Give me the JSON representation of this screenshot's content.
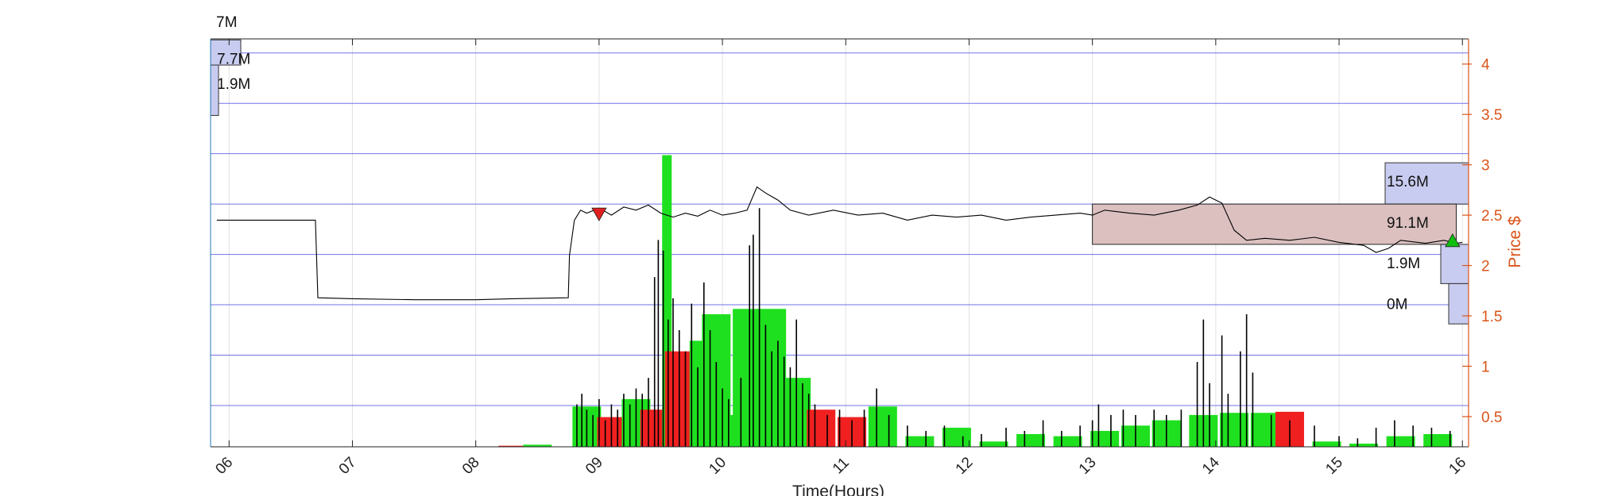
{
  "chart_data": {
    "type": "line",
    "xlabel": "Time(Hours)",
    "ylabel_right": "Price $",
    "xlim": [
      5.85,
      16.05
    ],
    "x_ticks": [
      "06",
      "07",
      "08",
      "09",
      "10",
      "11",
      "12",
      "13",
      "14",
      "15",
      "16"
    ],
    "ylim": [
      0.2,
      4.25
    ],
    "y_ticks": [
      0.5,
      1,
      1.5,
      2,
      2.5,
      3,
      3.5,
      4
    ],
    "y_tick_labels": [
      "0.5",
      "1",
      "1.5",
      "2",
      "2.5",
      "3",
      "3.5",
      "4"
    ],
    "top_label": "7M",
    "colors": {
      "price_line": "#000000",
      "axis_right": "#d9541a",
      "grid_blue": "#5a5ae6",
      "profile": "#c8ccf0",
      "box": "#dcc0c0",
      "vol_up": "#1fe01f",
      "vol_down": "#f02020"
    },
    "price_series": [
      [
        5.9,
        2.45
      ],
      [
        6.2,
        2.45
      ],
      [
        6.5,
        2.45
      ],
      [
        6.7,
        2.45
      ],
      [
        6.72,
        1.68
      ],
      [
        7.0,
        1.67
      ],
      [
        7.5,
        1.66
      ],
      [
        8.0,
        1.66
      ],
      [
        8.3,
        1.67
      ],
      [
        8.75,
        1.68
      ],
      [
        8.76,
        2.1
      ],
      [
        8.8,
        2.45
      ],
      [
        8.85,
        2.55
      ],
      [
        8.9,
        2.52
      ],
      [
        9.0,
        2.57
      ],
      [
        9.1,
        2.5
      ],
      [
        9.2,
        2.58
      ],
      [
        9.3,
        2.55
      ],
      [
        9.4,
        2.6
      ],
      [
        9.5,
        2.52
      ],
      [
        9.6,
        2.48
      ],
      [
        9.7,
        2.52
      ],
      [
        9.8,
        2.49
      ],
      [
        9.9,
        2.55
      ],
      [
        10.0,
        2.5
      ],
      [
        10.1,
        2.52
      ],
      [
        10.2,
        2.55
      ],
      [
        10.28,
        2.78
      ],
      [
        10.35,
        2.72
      ],
      [
        10.45,
        2.65
      ],
      [
        10.55,
        2.55
      ],
      [
        10.7,
        2.5
      ],
      [
        10.9,
        2.55
      ],
      [
        11.1,
        2.5
      ],
      [
        11.3,
        2.52
      ],
      [
        11.5,
        2.45
      ],
      [
        11.7,
        2.5
      ],
      [
        11.9,
        2.48
      ],
      [
        12.1,
        2.5
      ],
      [
        12.3,
        2.45
      ],
      [
        12.5,
        2.48
      ],
      [
        12.7,
        2.5
      ],
      [
        12.9,
        2.52
      ],
      [
        13.0,
        2.5
      ],
      [
        13.1,
        2.55
      ],
      [
        13.3,
        2.52
      ],
      [
        13.5,
        2.5
      ],
      [
        13.7,
        2.55
      ],
      [
        13.85,
        2.6
      ],
      [
        13.95,
        2.68
      ],
      [
        14.05,
        2.62
      ],
      [
        14.15,
        2.35
      ],
      [
        14.25,
        2.25
      ],
      [
        14.4,
        2.27
      ],
      [
        14.6,
        2.25
      ],
      [
        14.8,
        2.28
      ],
      [
        15.0,
        2.23
      ],
      [
        15.2,
        2.2
      ],
      [
        15.3,
        2.13
      ],
      [
        15.4,
        2.17
      ],
      [
        15.5,
        2.25
      ],
      [
        15.7,
        2.22
      ],
      [
        15.85,
        2.25
      ],
      [
        15.95,
        2.22
      ],
      [
        16.0,
        2.23
      ]
    ],
    "volume_profile": [
      {
        "side": "left",
        "price_low": 3.99,
        "price_high": 4.24,
        "label": "7.7M"
      },
      {
        "side": "left",
        "price_low": 3.49,
        "price_high": 3.99,
        "label": "1.9M"
      },
      {
        "side": "right",
        "price_low": 2.61,
        "price_high": 3.02,
        "label": "15.6M"
      },
      {
        "side": "right",
        "price_low": 1.82,
        "price_high": 2.21,
        "label": "1.9M"
      },
      {
        "side": "right",
        "price_low": 1.42,
        "price_high": 1.82,
        "label": "0M"
      }
    ],
    "value_area_box": {
      "x_start": 13.0,
      "x_end": 15.95,
      "price_low": 2.21,
      "price_high": 2.61,
      "label": "91.1M"
    },
    "markers": [
      {
        "type": "sell",
        "x": 9.0,
        "y": 2.5,
        "color": "#e02020"
      },
      {
        "type": "buy",
        "x": 15.92,
        "y": 2.25,
        "color": "#10c010"
      }
    ],
    "volume_bars": [
      {
        "x": 8.3,
        "h": 0.01,
        "dir": "down"
      },
      {
        "x": 8.5,
        "h": 0.02,
        "dir": "up"
      },
      {
        "x": 8.9,
        "h": 0.38,
        "dir": "up"
      },
      {
        "x": 9.1,
        "h": 0.28,
        "dir": "down"
      },
      {
        "x": 9.3,
        "h": 0.45,
        "dir": "up"
      },
      {
        "x": 9.45,
        "h": 0.35,
        "dir": "down"
      },
      {
        "x": 9.55,
        "h": 2.75,
        "dir": "up"
      },
      {
        "x": 9.65,
        "h": 0.9,
        "dir": "down"
      },
      {
        "x": 9.75,
        "h": 0.5,
        "dir": "down"
      },
      {
        "x": 9.85,
        "h": 1.0,
        "dir": "up"
      },
      {
        "x": 9.95,
        "h": 1.25,
        "dir": "up"
      },
      {
        "x": 10.05,
        "h": 0.3,
        "dir": "up"
      },
      {
        "x": 10.2,
        "h": 1.3,
        "dir": "up"
      },
      {
        "x": 10.4,
        "h": 1.3,
        "dir": "up"
      },
      {
        "x": 10.6,
        "h": 0.65,
        "dir": "up"
      },
      {
        "x": 10.8,
        "h": 0.35,
        "dir": "down"
      },
      {
        "x": 11.05,
        "h": 0.28,
        "dir": "down"
      },
      {
        "x": 11.3,
        "h": 0.38,
        "dir": "up"
      },
      {
        "x": 11.6,
        "h": 0.1,
        "dir": "up"
      },
      {
        "x": 11.9,
        "h": 0.18,
        "dir": "up"
      },
      {
        "x": 12.2,
        "h": 0.05,
        "dir": "up"
      },
      {
        "x": 12.5,
        "h": 0.12,
        "dir": "up"
      },
      {
        "x": 12.8,
        "h": 0.1,
        "dir": "up"
      },
      {
        "x": 13.1,
        "h": 0.15,
        "dir": "up"
      },
      {
        "x": 13.35,
        "h": 0.2,
        "dir": "up"
      },
      {
        "x": 13.6,
        "h": 0.25,
        "dir": "up"
      },
      {
        "x": 13.9,
        "h": 0.3,
        "dir": "up"
      },
      {
        "x": 14.15,
        "h": 0.32,
        "dir": "up"
      },
      {
        "x": 14.4,
        "h": 0.32,
        "dir": "up"
      },
      {
        "x": 14.6,
        "h": 0.33,
        "dir": "down"
      },
      {
        "x": 14.9,
        "h": 0.05,
        "dir": "up"
      },
      {
        "x": 15.2,
        "h": 0.03,
        "dir": "up"
      },
      {
        "x": 15.5,
        "h": 0.1,
        "dir": "up"
      },
      {
        "x": 15.8,
        "h": 0.12,
        "dir": "up"
      }
    ],
    "volume_spikes": [
      [
        8.82,
        0.4
      ],
      [
        8.86,
        0.5
      ],
      [
        8.9,
        0.35
      ],
      [
        8.95,
        0.3
      ],
      [
        9.0,
        0.45
      ],
      [
        9.05,
        0.25
      ],
      [
        9.1,
        0.4
      ],
      [
        9.15,
        0.35
      ],
      [
        9.2,
        0.5
      ],
      [
        9.25,
        0.4
      ],
      [
        9.3,
        0.55
      ],
      [
        9.35,
        0.5
      ],
      [
        9.4,
        0.65
      ],
      [
        9.45,
        1.6
      ],
      [
        9.48,
        1.95
      ],
      [
        9.52,
        1.85
      ],
      [
        9.56,
        1.2
      ],
      [
        9.6,
        1.4
      ],
      [
        9.65,
        1.1
      ],
      [
        9.7,
        0.9
      ],
      [
        9.75,
        1.35
      ],
      [
        9.8,
        0.75
      ],
      [
        9.85,
        1.55
      ],
      [
        9.9,
        1.1
      ],
      [
        9.95,
        0.8
      ],
      [
        10.0,
        0.55
      ],
      [
        10.05,
        0.45
      ],
      [
        10.15,
        0.65
      ],
      [
        10.22,
        1.9
      ],
      [
        10.25,
        2.0
      ],
      [
        10.3,
        2.25
      ],
      [
        10.35,
        1.15
      ],
      [
        10.4,
        0.9
      ],
      [
        10.45,
        1.0
      ],
      [
        10.5,
        0.85
      ],
      [
        10.55,
        0.75
      ],
      [
        10.6,
        1.2
      ],
      [
        10.65,
        0.6
      ],
      [
        10.7,
        0.5
      ],
      [
        10.75,
        0.4
      ],
      [
        10.85,
        0.3
      ],
      [
        10.95,
        0.35
      ],
      [
        11.05,
        0.25
      ],
      [
        11.15,
        0.35
      ],
      [
        11.25,
        0.55
      ],
      [
        11.35,
        0.3
      ],
      [
        11.5,
        0.2
      ],
      [
        11.65,
        0.15
      ],
      [
        11.8,
        0.2
      ],
      [
        11.95,
        0.1
      ],
      [
        12.1,
        0.12
      ],
      [
        12.3,
        0.18
      ],
      [
        12.45,
        0.15
      ],
      [
        12.6,
        0.25
      ],
      [
        12.75,
        0.15
      ],
      [
        12.9,
        0.2
      ],
      [
        13.0,
        0.25
      ],
      [
        13.05,
        0.4
      ],
      [
        13.15,
        0.3
      ],
      [
        13.25,
        0.35
      ],
      [
        13.35,
        0.3
      ],
      [
        13.5,
        0.35
      ],
      [
        13.6,
        0.3
      ],
      [
        13.72,
        0.35
      ],
      [
        13.85,
        0.8
      ],
      [
        13.9,
        1.2
      ],
      [
        13.95,
        0.6
      ],
      [
        14.05,
        1.05
      ],
      [
        14.1,
        0.5
      ],
      [
        14.2,
        0.9
      ],
      [
        14.25,
        1.25
      ],
      [
        14.3,
        0.7
      ],
      [
        14.45,
        0.3
      ],
      [
        14.6,
        0.25
      ],
      [
        14.8,
        0.2
      ],
      [
        15.0,
        0.1
      ],
      [
        15.15,
        0.08
      ],
      [
        15.3,
        0.18
      ],
      [
        15.45,
        0.25
      ],
      [
        15.6,
        0.2
      ],
      [
        15.75,
        0.18
      ],
      [
        15.9,
        0.15
      ]
    ]
  }
}
